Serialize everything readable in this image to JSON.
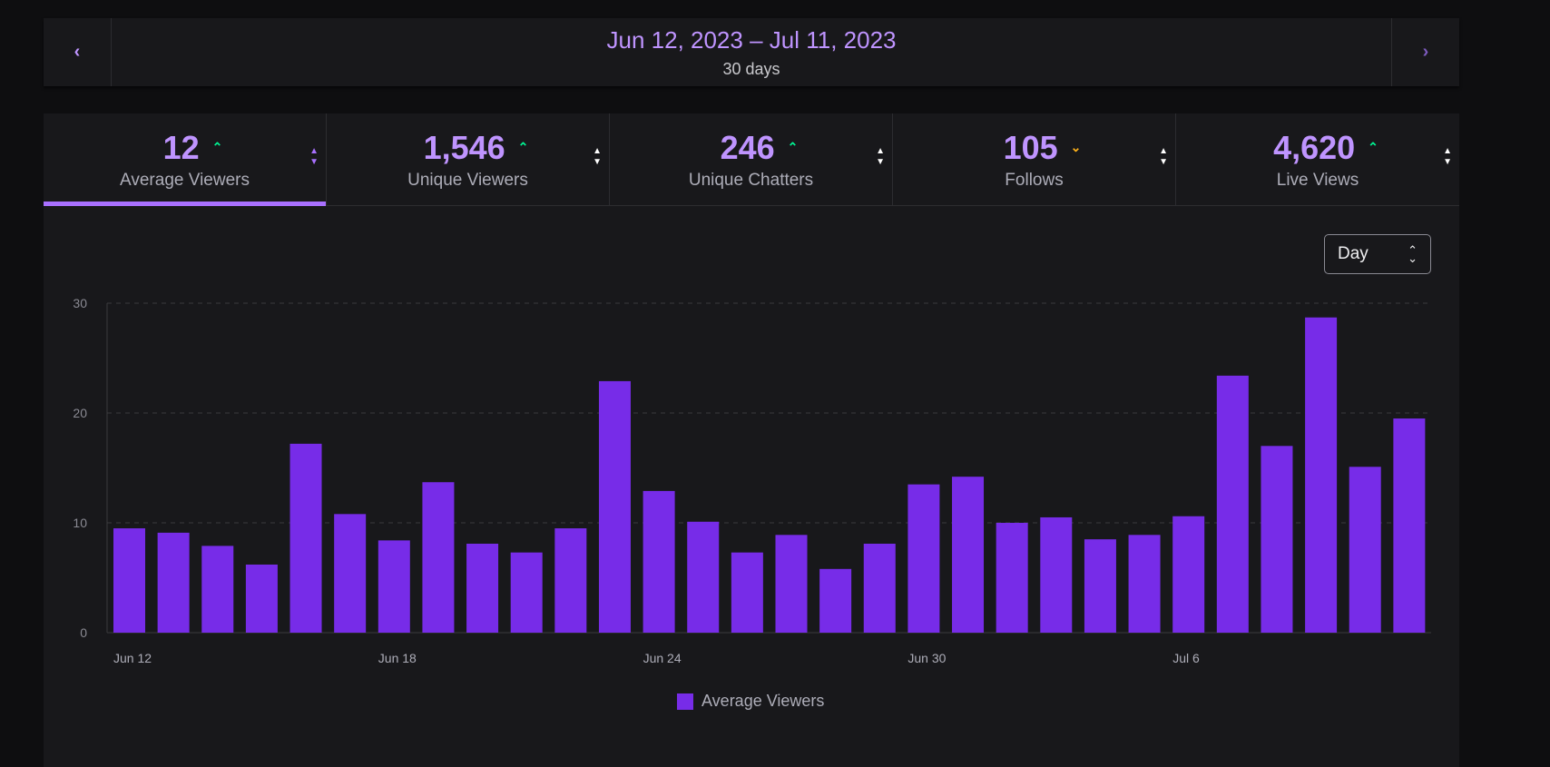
{
  "date_bar": {
    "range": "Jun 12, 2023 – Jul 11, 2023",
    "days": "30 days",
    "prev_icon": "‹",
    "next_icon": "›"
  },
  "tabs": [
    {
      "value": "12",
      "label": "Average Viewers",
      "trend": "up",
      "active": true
    },
    {
      "value": "1,546",
      "label": "Unique Viewers",
      "trend": "up",
      "active": false
    },
    {
      "value": "246",
      "label": "Unique Chatters",
      "trend": "up",
      "active": false
    },
    {
      "value": "105",
      "label": "Follows",
      "trend": "down",
      "active": false
    },
    {
      "value": "4,620",
      "label": "Live Views",
      "trend": "up",
      "active": false
    }
  ],
  "interval_select": {
    "value": "Day"
  },
  "colors": {
    "bar": "#772ce8",
    "accent": "#bf94ff",
    "up": "#00f593",
    "down": "#ffb31a"
  },
  "chart_data": {
    "type": "bar",
    "title": "",
    "xlabel": "",
    "ylabel": "",
    "ylim": [
      0,
      30
    ],
    "yticks": [
      0,
      10,
      20,
      30
    ],
    "grid": true,
    "legend": "bottom-center",
    "series": [
      {
        "name": "Average Viewers",
        "values": [
          9.5,
          9.1,
          7.9,
          6.2,
          17.2,
          10.8,
          8.4,
          13.7,
          8.1,
          7.3,
          9.5,
          22.9,
          12.9,
          10.1,
          7.3,
          8.9,
          5.8,
          8.1,
          13.5,
          14.2,
          10.0,
          10.5,
          8.5,
          8.9,
          10.6,
          23.4,
          17.0,
          28.7,
          15.1,
          19.5
        ]
      }
    ],
    "xtick_labels": [
      {
        "index": 0,
        "label": "Jun 12"
      },
      {
        "index": 6,
        "label": "Jun 18"
      },
      {
        "index": 12,
        "label": "Jun 24"
      },
      {
        "index": 18,
        "label": "Jun 30"
      },
      {
        "index": 24,
        "label": "Jul 6"
      }
    ]
  }
}
